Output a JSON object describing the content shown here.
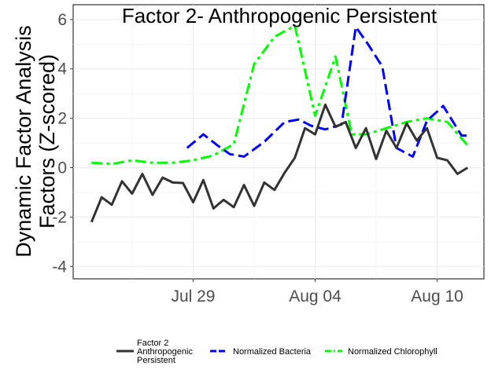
{
  "chart_data": {
    "type": "line",
    "title": "Factor 2- Anthropogenic Persistent",
    "ylabel_lines": [
      "Dynamic Factor Analysis",
      "Factors (Z-scored)"
    ],
    "xlabel": "",
    "x_start_date": "2019-07-24",
    "xlim": [
      -0.9,
      19.3
    ],
    "ylim": [
      -4.5,
      6.6
    ],
    "y_ticks": [
      -4,
      -2,
      0,
      2,
      4,
      6
    ],
    "y_tick_labels": [
      "-4",
      "-2",
      "0",
      "2",
      "4",
      "6"
    ],
    "x_ticks": [
      5,
      11,
      17
    ],
    "x_tick_labels": [
      "Jul 29",
      "Aug 04",
      "Aug 10"
    ],
    "grid": true,
    "legend_position": "bottom",
    "series": [
      {
        "name": "Factor 2 Anthropogenic Persistent",
        "legend_lines": [
          "Factor 2",
          "Anthropogenic",
          "Persistent"
        ],
        "color": "#333333",
        "style": "solid",
        "x": [
          0,
          0.5,
          1,
          1.5,
          2,
          2.5,
          3,
          3.5,
          4,
          4.5,
          5,
          5.5,
          6,
          6.5,
          7,
          7.5,
          8,
          8.5,
          9,
          9.5,
          10,
          10.5,
          11,
          11.5,
          12,
          12.5,
          13,
          13.5,
          14,
          14.5,
          15,
          15.5,
          16,
          16.5,
          17,
          17.5,
          18,
          18.5
        ],
        "y": [
          -2.2,
          -1.2,
          -1.5,
          -0.55,
          -1.05,
          -0.25,
          -1.1,
          -0.4,
          -0.6,
          -0.62,
          -1.4,
          -0.5,
          -1.65,
          -1.3,
          -1.6,
          -0.7,
          -1.55,
          -0.6,
          -0.9,
          -0.2,
          0.4,
          1.6,
          1.35,
          2.55,
          1.65,
          1.85,
          0.8,
          1.6,
          0.35,
          1.5,
          0.8,
          1.8,
          1.1,
          1.6,
          0.4,
          0.3,
          -0.25,
          0.0
        ]
      },
      {
        "name": "Normalized Bacteria",
        "legend_lines": [
          "Normalized Bacteria"
        ],
        "color": "#0000ff",
        "style": "longdash",
        "x": [
          4.7,
          5.5,
          6.2,
          6.8,
          7.5,
          8.5,
          9.5,
          10.2,
          10.8,
          11.5,
          12.3,
          13,
          13.6,
          14.3,
          15,
          15.8,
          16.5,
          17.3,
          18.2,
          18.5
        ],
        "y": [
          0.8,
          1.35,
          0.9,
          0.55,
          0.45,
          1.05,
          1.85,
          1.95,
          1.7,
          1.55,
          1.75,
          5.7,
          5.0,
          4.1,
          0.8,
          0.45,
          1.9,
          2.5,
          1.3,
          1.3
        ]
      },
      {
        "name": "Normalized Chlorophyll",
        "legend_lines": [
          "Normalized Chlorophyll"
        ],
        "color": "#00ff00",
        "style": "dashdot",
        "x": [
          0,
          1,
          2,
          3,
          4,
          5,
          6,
          7,
          8,
          9,
          10,
          11,
          12,
          12.8,
          13.5,
          14.5,
          15.5,
          16.5,
          17.5,
          18.5
        ],
        "y": [
          0.2,
          0.15,
          0.3,
          0.2,
          0.2,
          0.3,
          0.5,
          0.95,
          4.2,
          5.3,
          5.75,
          2.1,
          4.5,
          1.35,
          1.35,
          1.6,
          1.85,
          2.0,
          1.85,
          0.9
        ]
      }
    ]
  }
}
